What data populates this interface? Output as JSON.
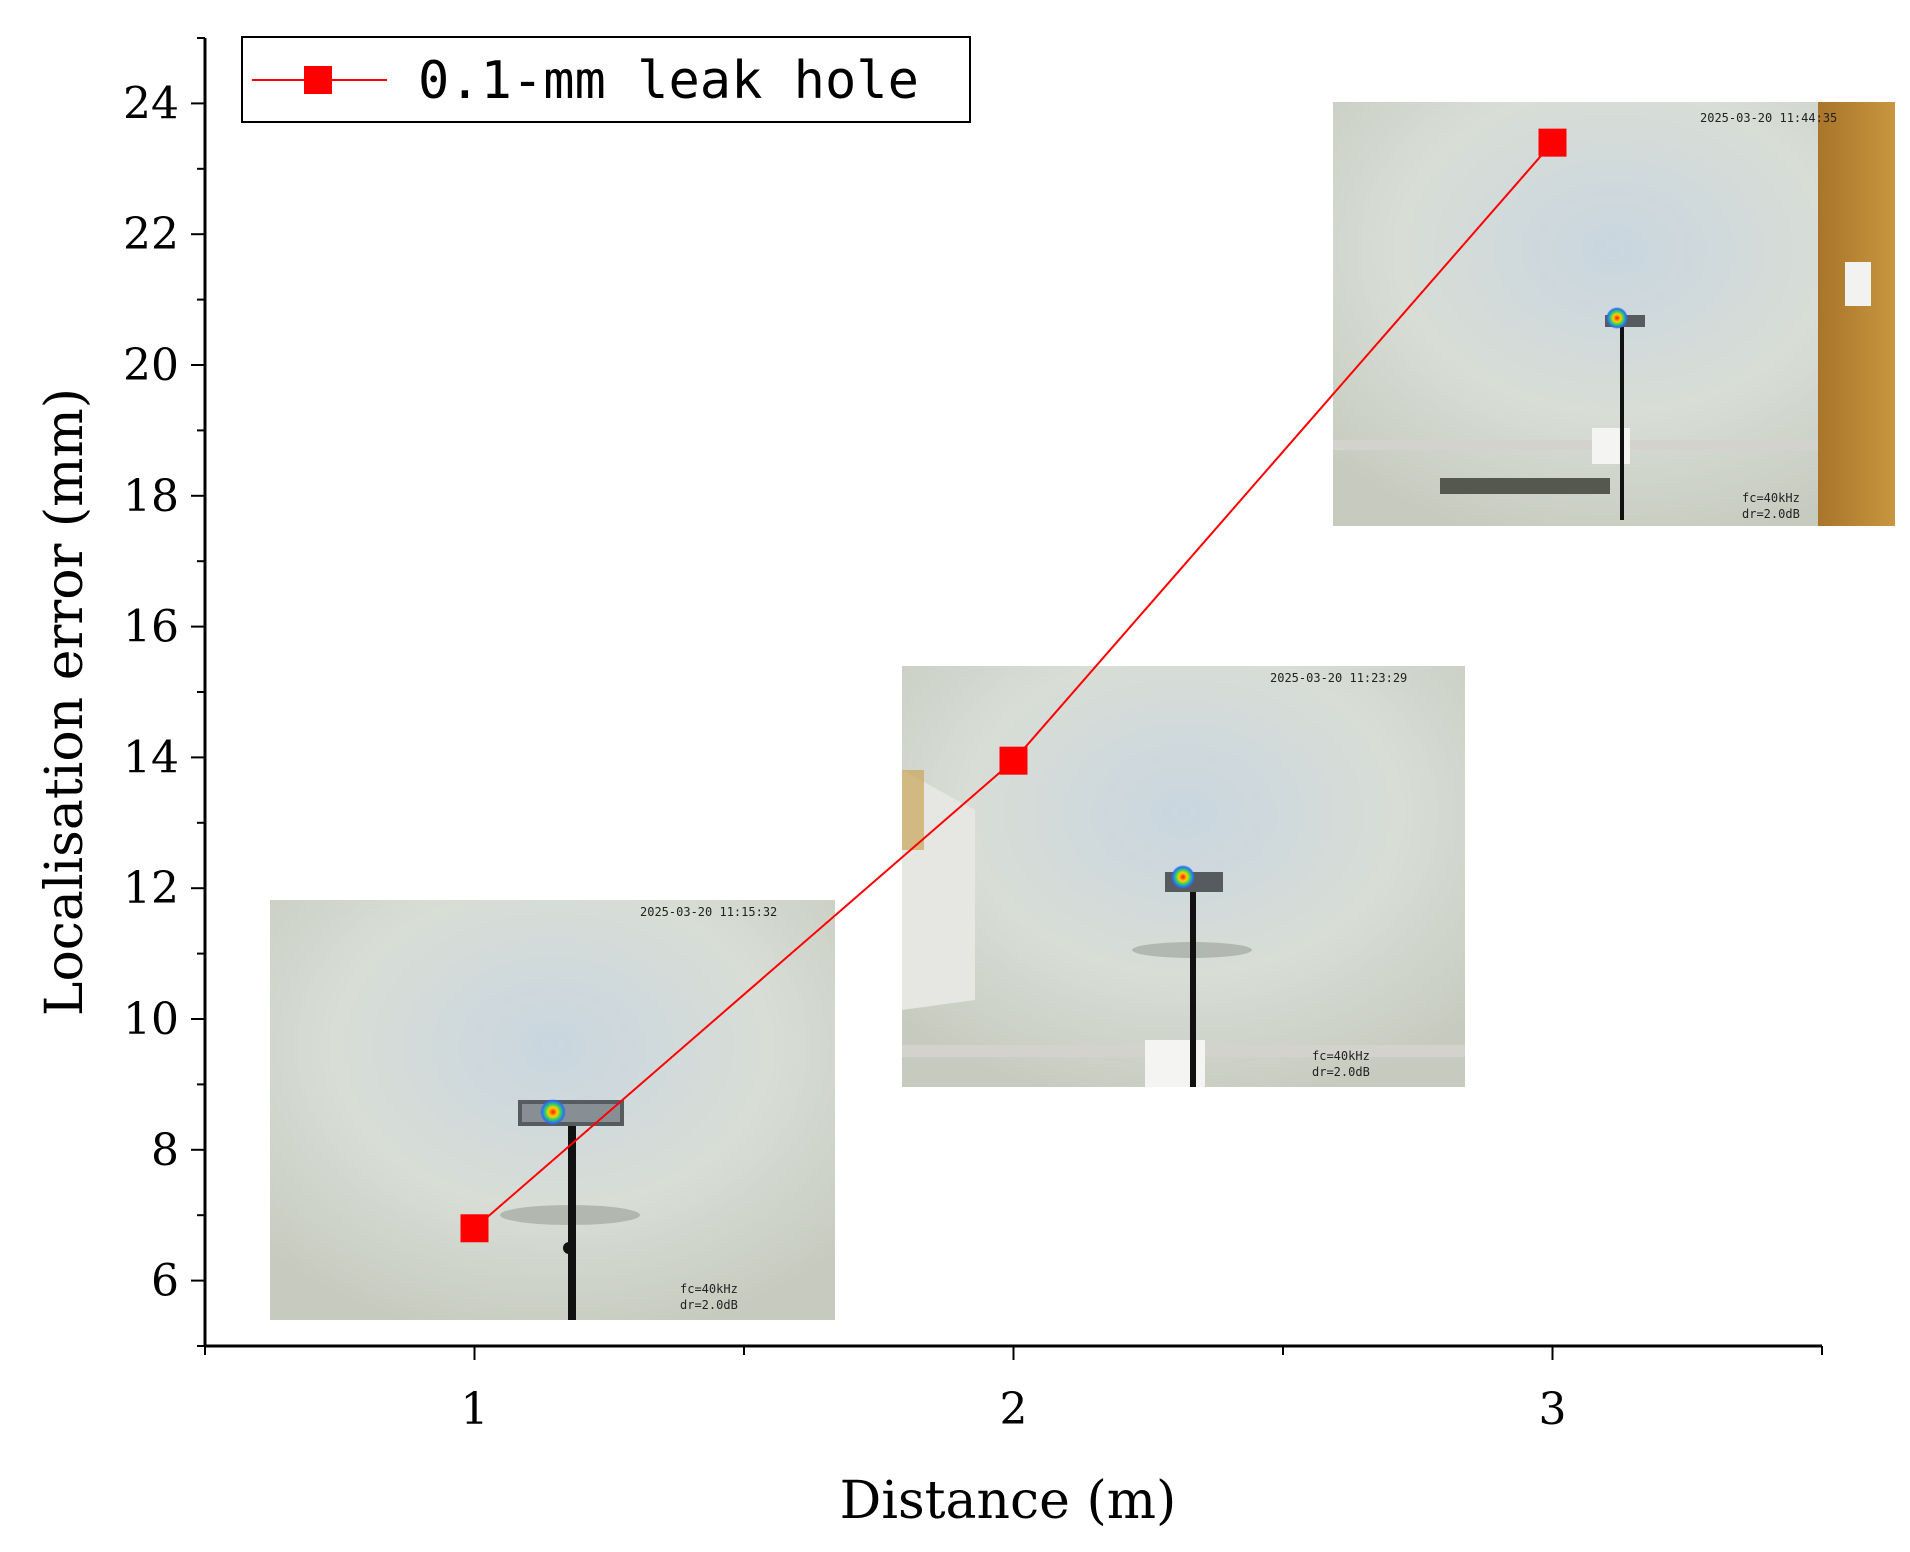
{
  "chart_data": {
    "type": "line",
    "xlabel": "Distance (m)",
    "ylabel": "Localisation error (mm)",
    "x": [
      1,
      2,
      3
    ],
    "series": [
      {
        "name": "0.1-mm leak hole",
        "values": [
          6.8,
          13.95,
          23.4
        ],
        "color": "#ff0000",
        "marker": "square"
      }
    ],
    "xlim": [
      0.5,
      3.5
    ],
    "ylim": [
      5,
      25
    ],
    "xticks": [
      "1",
      "2",
      "3"
    ],
    "yticks": [
      "6",
      "8",
      "10",
      "12",
      "14",
      "16",
      "18",
      "20",
      "22",
      "24"
    ],
    "grid": false,
    "legend_position": "top-left",
    "insets": [
      {
        "name": "photo-1m",
        "timestamp": "2025-03-20 11:15:32",
        "fc": "fc=40kHz",
        "dr": "dr=2.0dB"
      },
      {
        "name": "photo-2m",
        "timestamp": "2025-03-20 11:23:29",
        "fc": "fc=40kHz",
        "dr": "dr=2.0dB"
      },
      {
        "name": "photo-3m",
        "timestamp": "2025-03-20 11:44:35",
        "fc": "fc=40kHz",
        "dr": "dr=2.0dB"
      }
    ]
  }
}
